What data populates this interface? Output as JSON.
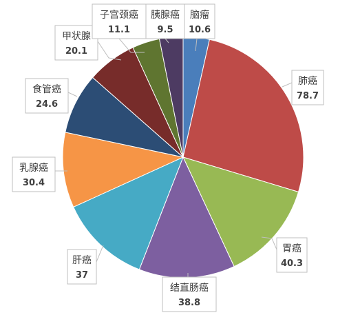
{
  "chart_data": {
    "type": "pie",
    "title": "",
    "legend": "none",
    "start_angle_deg": 0,
    "direction": "clockwise",
    "slices": [
      {
        "label": "脑瘤",
        "value": 10.6,
        "color": "#4a7ebb"
      },
      {
        "label": "肺癌",
        "value": 78.7,
        "color": "#be4b48"
      },
      {
        "label": "胃癌",
        "value": 40.3,
        "color": "#98b954"
      },
      {
        "label": "结直肠癌",
        "value": 38.8,
        "color": "#7d5fa0"
      },
      {
        "label": "肝癌",
        "value": 37,
        "color": "#46aac5"
      },
      {
        "label": "乳腺癌",
        "value": 30.4,
        "color": "#f69546"
      },
      {
        "label": "食管癌",
        "value": 24.6,
        "color": "#2c4d75"
      },
      {
        "label": "甲状腺",
        "value": 20.1,
        "color": "#772c2a"
      },
      {
        "label": "子宫颈癌",
        "value": 11.1,
        "color": "#5f7530"
      },
      {
        "label": "胰腺癌",
        "value": 9.5,
        "color": "#4d3b62"
      }
    ]
  }
}
